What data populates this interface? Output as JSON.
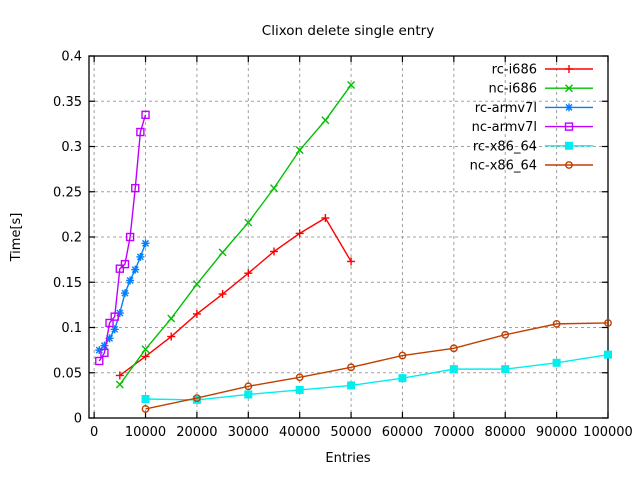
{
  "chart_data": {
    "type": "line",
    "title": "Clixon delete single entry",
    "xlabel": "Entries",
    "ylabel": "Time[s]",
    "xlim": [
      0,
      100000
    ],
    "ylim": [
      0,
      0.4
    ],
    "xticks": [
      0,
      10000,
      20000,
      30000,
      40000,
      50000,
      60000,
      70000,
      80000,
      90000,
      100000
    ],
    "xtick_labels": [
      "0",
      "10000",
      "20000",
      "30000",
      "40000",
      "50000",
      "60000",
      "70000",
      "80000",
      "90000",
      "100000"
    ],
    "yticks": [
      0,
      0.05,
      0.1,
      0.15,
      0.2,
      0.25,
      0.3,
      0.35,
      0.4
    ],
    "ytick_labels": [
      "0",
      "0.05",
      "0.1",
      "0.15",
      "0.2",
      "0.25",
      "0.3",
      "0.35",
      "0.4"
    ],
    "grid": true,
    "legend_position": "top-right-inside",
    "border_color": "#000000",
    "grid_color": "#a0a0a0",
    "series": [
      {
        "name": "rc-i686",
        "color": "#ff0000",
        "marker": "plus",
        "x": [
          5000,
          10000,
          15000,
          20000,
          25000,
          30000,
          35000,
          40000,
          45000,
          50000
        ],
        "y": [
          0.047,
          0.068,
          0.09,
          0.115,
          0.137,
          0.16,
          0.184,
          0.204,
          0.221,
          0.173
        ]
      },
      {
        "name": "nc-i686",
        "color": "#00c000",
        "marker": "cross",
        "x": [
          5000,
          10000,
          15000,
          20000,
          25000,
          30000,
          35000,
          40000,
          45000,
          50000
        ],
        "y": [
          0.037,
          0.076,
          0.11,
          0.148,
          0.183,
          0.216,
          0.254,
          0.296,
          0.329,
          0.368
        ]
      },
      {
        "name": "rc-armv7l",
        "color": "#0080ff",
        "marker": "asterisk",
        "x": [
          1000,
          2000,
          3000,
          4000,
          5000,
          6000,
          7000,
          8000,
          9000,
          10000
        ],
        "y": [
          0.075,
          0.08,
          0.088,
          0.098,
          0.116,
          0.138,
          0.152,
          0.164,
          0.178,
          0.193
        ]
      },
      {
        "name": "nc-armv7l",
        "color": "#c000ff",
        "marker": "square-open",
        "x": [
          1000,
          2000,
          3000,
          4000,
          5000,
          6000,
          7000,
          8000,
          9000,
          10000
        ],
        "y": [
          0.063,
          0.072,
          0.105,
          0.112,
          0.165,
          0.17,
          0.2,
          0.254,
          0.316,
          0.335
        ]
      },
      {
        "name": "rc-x86_64",
        "color": "#00eeee",
        "marker": "square-filled",
        "x": [
          10000,
          20000,
          30000,
          40000,
          50000,
          60000,
          70000,
          80000,
          90000,
          100000
        ],
        "y": [
          0.021,
          0.02,
          0.026,
          0.031,
          0.036,
          0.044,
          0.054,
          0.054,
          0.061,
          0.07
        ]
      },
      {
        "name": "nc-x86_64",
        "color": "#c04000",
        "marker": "circle-open",
        "x": [
          10000,
          20000,
          30000,
          40000,
          50000,
          60000,
          70000,
          80000,
          90000,
          100000
        ],
        "y": [
          0.01,
          0.022,
          0.035,
          0.045,
          0.056,
          0.069,
          0.077,
          0.092,
          0.104,
          0.105
        ]
      }
    ]
  }
}
